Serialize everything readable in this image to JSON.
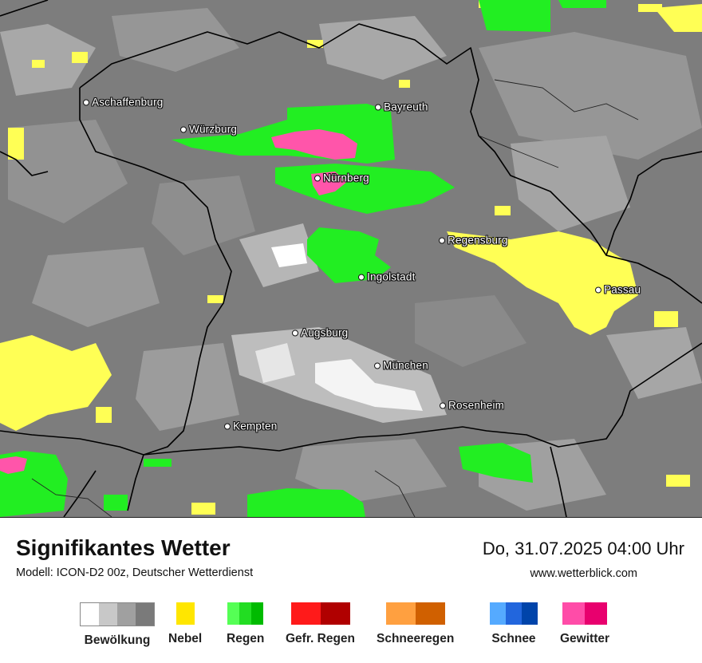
{
  "map": {
    "cities": [
      {
        "name": "Aschaffenburg"
      },
      {
        "name": "Würzburg"
      },
      {
        "name": "Bayreuth"
      },
      {
        "name": "Nürnberg"
      },
      {
        "name": "Regensburg"
      },
      {
        "name": "Ingolstadt"
      },
      {
        "name": "Passau"
      },
      {
        "name": "Augsburg"
      },
      {
        "name": "München"
      },
      {
        "name": "Rosenheim"
      },
      {
        "name": "Kempten"
      }
    ]
  },
  "footer": {
    "title": "Signifikantes Wetter",
    "model": "Modell: ICON-D2 00z, Deutscher Wetterdienst",
    "datetime": "Do, 31.07.2025 04:00 Uhr",
    "website": "www.wetterblick.com"
  },
  "legend": [
    {
      "label": "Bewölkung",
      "colors": [
        "#ffffff",
        "#c8c8c8",
        "#a0a0a0",
        "#7a7a7a"
      ]
    },
    {
      "label": "Nebel",
      "colors": [
        "#ffe600"
      ]
    },
    {
      "label": "Regen",
      "colors": [
        "#55ff55",
        "#22dd22",
        "#00bb00"
      ]
    },
    {
      "label": "Gefr. Regen",
      "colors": [
        "#ff1a1a",
        "#b00000"
      ]
    },
    {
      "label": "Schneeregen",
      "colors": [
        "#ffa040",
        "#d06000"
      ]
    },
    {
      "label": "Schnee",
      "colors": [
        "#55aaff",
        "#2266dd",
        "#0044aa"
      ]
    },
    {
      "label": "Gewitter",
      "colors": [
        "#ff4ca8",
        "#e8006e"
      ]
    }
  ],
  "colors": {
    "cloud_light": "#c8c8c8",
    "cloud_mid": "#a0a0a0",
    "cloud_dark": "#6e6e6e",
    "fog": "#ffff55",
    "rain": "#22ee22",
    "thunder": "#ff55aa",
    "border": "#000000"
  }
}
